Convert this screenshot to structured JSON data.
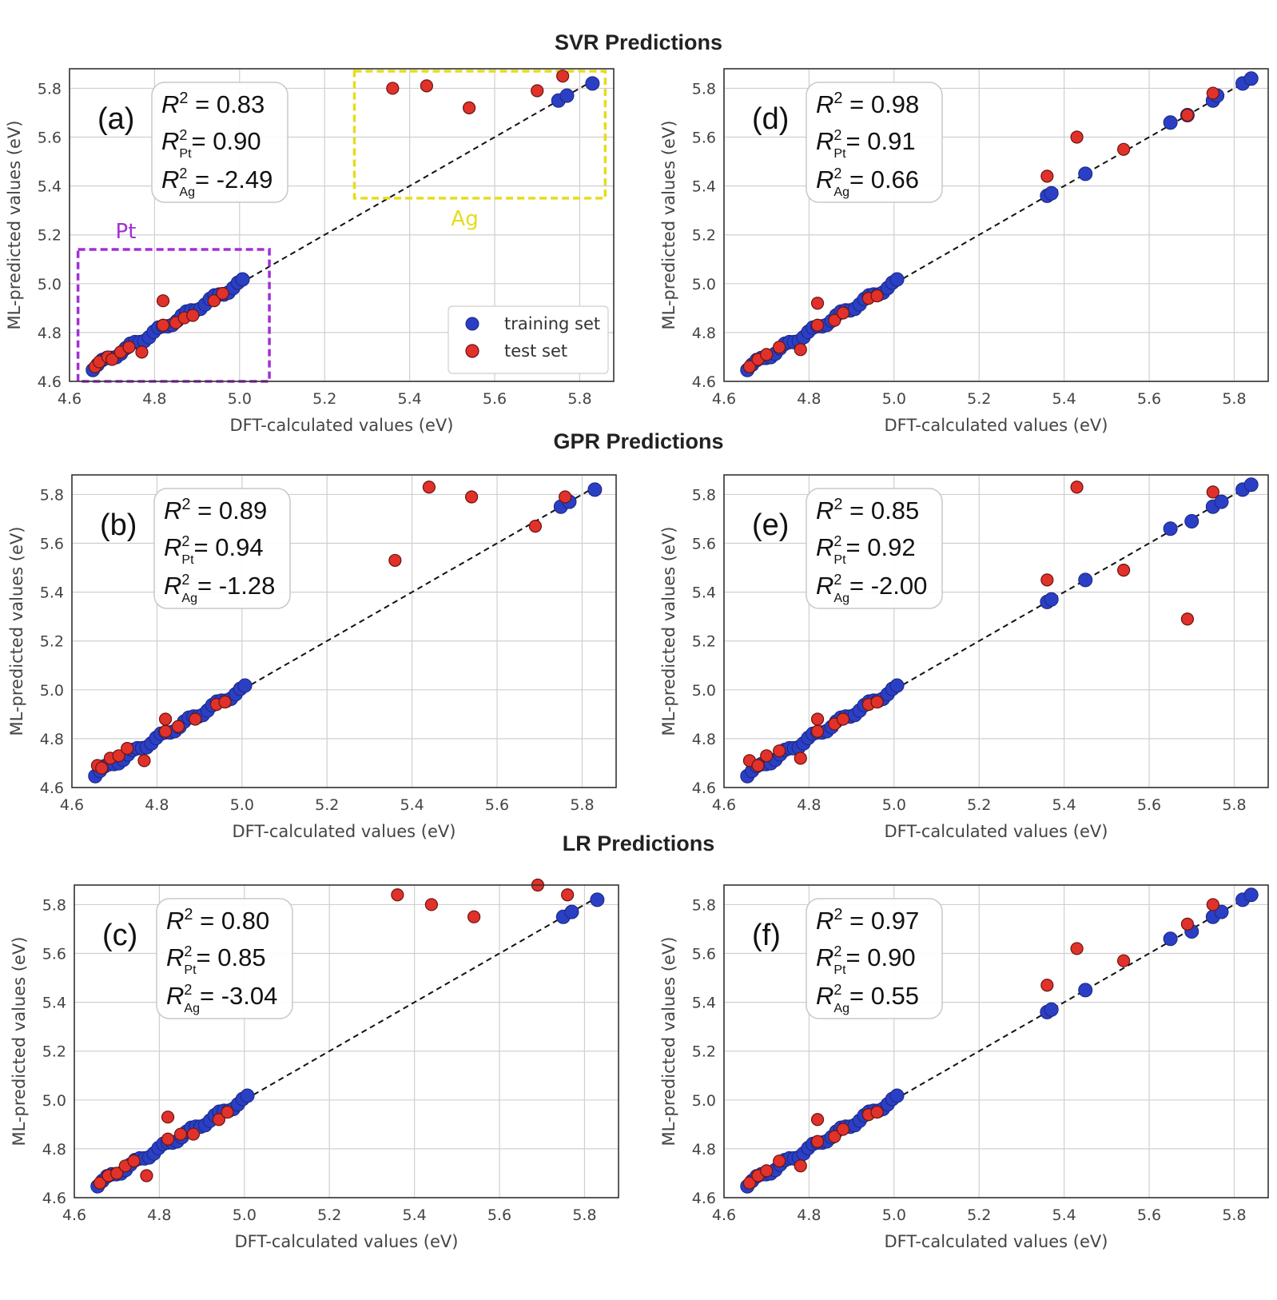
{
  "section_titles": {
    "svr": "SVR Predictions",
    "gpr": "GPR Predictions",
    "lr": "LR Predictions"
  },
  "colors": {
    "training": "#2b3fc4",
    "test": "#e0322a",
    "grid": "#cfcfcf",
    "diagonal": "#111111",
    "pt_box": "#a32ed6",
    "ag_box": "#e6dc1e"
  },
  "axes": {
    "xlabel": "DFT-calculated values (eV)",
    "ylabel": "ML-predicted values (eV)",
    "xticks": [
      "4.6",
      "4.8",
      "5.0",
      "5.2",
      "5.4",
      "5.6",
      "5.8"
    ],
    "yticks": [
      "4.6",
      "4.8",
      "5.0",
      "5.2",
      "5.4",
      "5.6",
      "5.8"
    ]
  },
  "legend": {
    "training": "training set",
    "test": "test set"
  },
  "regions": {
    "pt": "Pt",
    "ag": "Ag"
  },
  "chart_data": [
    {
      "id": "a",
      "type": "scatter",
      "model": "SVR",
      "label": "(a)",
      "title": "SVR Predictions",
      "xlabel": "DFT-calculated values (eV)",
      "ylabel": "ML-predicted values (eV)",
      "xlim": [
        4.6,
        5.88
      ],
      "ylim": [
        4.6,
        5.88
      ],
      "legend": "bottom-right",
      "stats": {
        "r2": "0.83",
        "r2_pt": "0.90",
        "r2_ag": "-2.49"
      },
      "annotations": [
        {
          "text": "Pt",
          "x_range": [
            4.62,
            5.07
          ],
          "y_range": [
            4.6,
            5.14
          ]
        },
        {
          "text": "Ag",
          "x_range": [
            5.27,
            5.86
          ],
          "y_range": [
            5.35,
            5.87
          ]
        }
      ],
      "train_extra": [
        [
          5.75,
          5.75
        ],
        [
          5.77,
          5.77
        ],
        [
          5.83,
          5.82
        ]
      ],
      "test": [
        [
          4.66,
          4.66
        ],
        [
          4.67,
          4.68
        ],
        [
          4.69,
          4.7
        ],
        [
          4.7,
          4.69
        ],
        [
          4.72,
          4.72
        ],
        [
          4.74,
          4.74
        ],
        [
          4.77,
          4.72
        ],
        [
          4.82,
          4.93
        ],
        [
          4.82,
          4.83
        ],
        [
          4.85,
          4.84
        ],
        [
          4.87,
          4.86
        ],
        [
          4.89,
          4.87
        ],
        [
          4.94,
          4.93
        ],
        [
          4.96,
          4.96
        ],
        [
          5.36,
          5.8
        ],
        [
          5.44,
          5.81
        ],
        [
          5.54,
          5.72
        ],
        [
          5.7,
          5.79
        ],
        [
          5.76,
          5.85
        ]
      ]
    },
    {
      "id": "b",
      "type": "scatter",
      "model": "GPR",
      "label": "(b)",
      "title": "GPR Predictions",
      "xlabel": "DFT-calculated values (eV)",
      "ylabel": "ML-predicted values (eV)",
      "xlim": [
        4.6,
        5.88
      ],
      "ylim": [
        4.6,
        5.88
      ],
      "stats": {
        "r2": "0.89",
        "r2_pt": "0.94",
        "r2_ag": "-1.28"
      },
      "train_extra": [
        [
          5.75,
          5.75
        ],
        [
          5.77,
          5.77
        ],
        [
          5.83,
          5.82
        ]
      ],
      "test": [
        [
          4.66,
          4.69
        ],
        [
          4.67,
          4.68
        ],
        [
          4.69,
          4.72
        ],
        [
          4.71,
          4.73
        ],
        [
          4.73,
          4.76
        ],
        [
          4.77,
          4.71
        ],
        [
          4.82,
          4.88
        ],
        [
          4.82,
          4.83
        ],
        [
          4.85,
          4.85
        ],
        [
          4.89,
          4.88
        ],
        [
          4.94,
          4.94
        ],
        [
          4.96,
          4.95
        ],
        [
          5.36,
          5.53
        ],
        [
          5.44,
          5.83
        ],
        [
          5.54,
          5.79
        ],
        [
          5.69,
          5.67
        ],
        [
          5.76,
          5.79
        ]
      ]
    },
    {
      "id": "c",
      "type": "scatter",
      "model": "LR",
      "label": "(c)",
      "title": "LR Predictions",
      "xlabel": "DFT-calculated values (eV)",
      "ylabel": "ML-predicted values (eV)",
      "xlim": [
        4.6,
        5.88
      ],
      "ylim": [
        4.6,
        5.88
      ],
      "stats": {
        "r2": "0.80",
        "r2_pt": "0.85",
        "r2_ag": "-3.04"
      },
      "train_extra": [
        [
          5.75,
          5.75
        ],
        [
          5.77,
          5.77
        ],
        [
          5.83,
          5.82
        ]
      ],
      "test": [
        [
          4.66,
          4.66
        ],
        [
          4.68,
          4.69
        ],
        [
          4.7,
          4.7
        ],
        [
          4.72,
          4.73
        ],
        [
          4.74,
          4.75
        ],
        [
          4.77,
          4.69
        ],
        [
          4.82,
          4.93
        ],
        [
          4.82,
          4.84
        ],
        [
          4.85,
          4.86
        ],
        [
          4.88,
          4.86
        ],
        [
          4.94,
          4.92
        ],
        [
          4.96,
          4.95
        ],
        [
          5.36,
          5.84
        ],
        [
          5.44,
          5.8
        ],
        [
          5.54,
          5.75
        ],
        [
          5.69,
          5.88
        ],
        [
          5.76,
          5.84
        ]
      ]
    },
    {
      "id": "d",
      "type": "scatter",
      "model": "SVR",
      "label": "(d)",
      "title": "SVR Predictions",
      "xlabel": "DFT-calculated values (eV)",
      "ylabel": "ML-predicted values (eV)",
      "xlim": [
        4.6,
        5.88
      ],
      "ylim": [
        4.6,
        5.88
      ],
      "stats": {
        "r2": "0.98",
        "r2_pt": "0.91",
        "r2_ag": "0.66"
      },
      "train_extra": [
        [
          5.36,
          5.36
        ],
        [
          5.37,
          5.37
        ],
        [
          5.45,
          5.45
        ],
        [
          5.65,
          5.66
        ],
        [
          5.69,
          5.69
        ],
        [
          5.75,
          5.75
        ],
        [
          5.76,
          5.77
        ],
        [
          5.82,
          5.82
        ],
        [
          5.84,
          5.84
        ]
      ],
      "test": [
        [
          4.66,
          4.66
        ],
        [
          4.68,
          4.69
        ],
        [
          4.7,
          4.71
        ],
        [
          4.73,
          4.74
        ],
        [
          4.78,
          4.73
        ],
        [
          4.82,
          4.92
        ],
        [
          4.82,
          4.83
        ],
        [
          4.86,
          4.85
        ],
        [
          4.88,
          4.88
        ],
        [
          4.94,
          4.94
        ],
        [
          4.96,
          4.95
        ],
        [
          5.36,
          5.44
        ],
        [
          5.43,
          5.6
        ],
        [
          5.54,
          5.55
        ],
        [
          5.69,
          5.69
        ],
        [
          5.75,
          5.78
        ]
      ]
    },
    {
      "id": "e",
      "type": "scatter",
      "model": "GPR",
      "label": "(e)",
      "title": "GPR Predictions",
      "xlabel": "DFT-calculated values (eV)",
      "ylabel": "ML-predicted values (eV)",
      "xlim": [
        4.6,
        5.88
      ],
      "ylim": [
        4.6,
        5.88
      ],
      "stats": {
        "r2": "0.85",
        "r2_pt": "0.92",
        "r2_ag": "-2.00"
      },
      "train_extra": [
        [
          5.36,
          5.36
        ],
        [
          5.37,
          5.37
        ],
        [
          5.45,
          5.45
        ],
        [
          5.65,
          5.66
        ],
        [
          5.7,
          5.69
        ],
        [
          5.75,
          5.75
        ],
        [
          5.77,
          5.77
        ],
        [
          5.82,
          5.82
        ],
        [
          5.84,
          5.84
        ]
      ],
      "test": [
        [
          4.66,
          4.71
        ],
        [
          4.68,
          4.69
        ],
        [
          4.7,
          4.73
        ],
        [
          4.73,
          4.75
        ],
        [
          4.78,
          4.72
        ],
        [
          4.82,
          4.88
        ],
        [
          4.82,
          4.83
        ],
        [
          4.86,
          4.86
        ],
        [
          4.88,
          4.88
        ],
        [
          4.94,
          4.94
        ],
        [
          4.96,
          4.95
        ],
        [
          5.36,
          5.45
        ],
        [
          5.43,
          5.83
        ],
        [
          5.54,
          5.49
        ],
        [
          5.69,
          5.29
        ],
        [
          5.75,
          5.81
        ]
      ]
    },
    {
      "id": "f",
      "type": "scatter",
      "model": "LR",
      "label": "(f)",
      "title": "LR Predictions",
      "xlabel": "DFT-calculated values (eV)",
      "ylabel": "ML-predicted values (eV)",
      "xlim": [
        4.6,
        5.88
      ],
      "ylim": [
        4.6,
        5.88
      ],
      "stats": {
        "r2": "0.97",
        "r2_pt": "0.90",
        "r2_ag": "0.55"
      },
      "train_extra": [
        [
          5.36,
          5.36
        ],
        [
          5.37,
          5.37
        ],
        [
          5.45,
          5.45
        ],
        [
          5.65,
          5.66
        ],
        [
          5.7,
          5.69
        ],
        [
          5.75,
          5.75
        ],
        [
          5.77,
          5.77
        ],
        [
          5.82,
          5.82
        ],
        [
          5.84,
          5.84
        ]
      ],
      "test": [
        [
          4.66,
          4.66
        ],
        [
          4.68,
          4.69
        ],
        [
          4.7,
          4.71
        ],
        [
          4.73,
          4.75
        ],
        [
          4.78,
          4.73
        ],
        [
          4.82,
          4.92
        ],
        [
          4.82,
          4.83
        ],
        [
          4.86,
          4.85
        ],
        [
          4.88,
          4.88
        ],
        [
          4.94,
          4.94
        ],
        [
          4.96,
          4.95
        ],
        [
          5.36,
          5.47
        ],
        [
          5.43,
          5.62
        ],
        [
          5.54,
          5.57
        ],
        [
          5.69,
          5.72
        ],
        [
          5.75,
          5.8
        ]
      ]
    }
  ]
}
